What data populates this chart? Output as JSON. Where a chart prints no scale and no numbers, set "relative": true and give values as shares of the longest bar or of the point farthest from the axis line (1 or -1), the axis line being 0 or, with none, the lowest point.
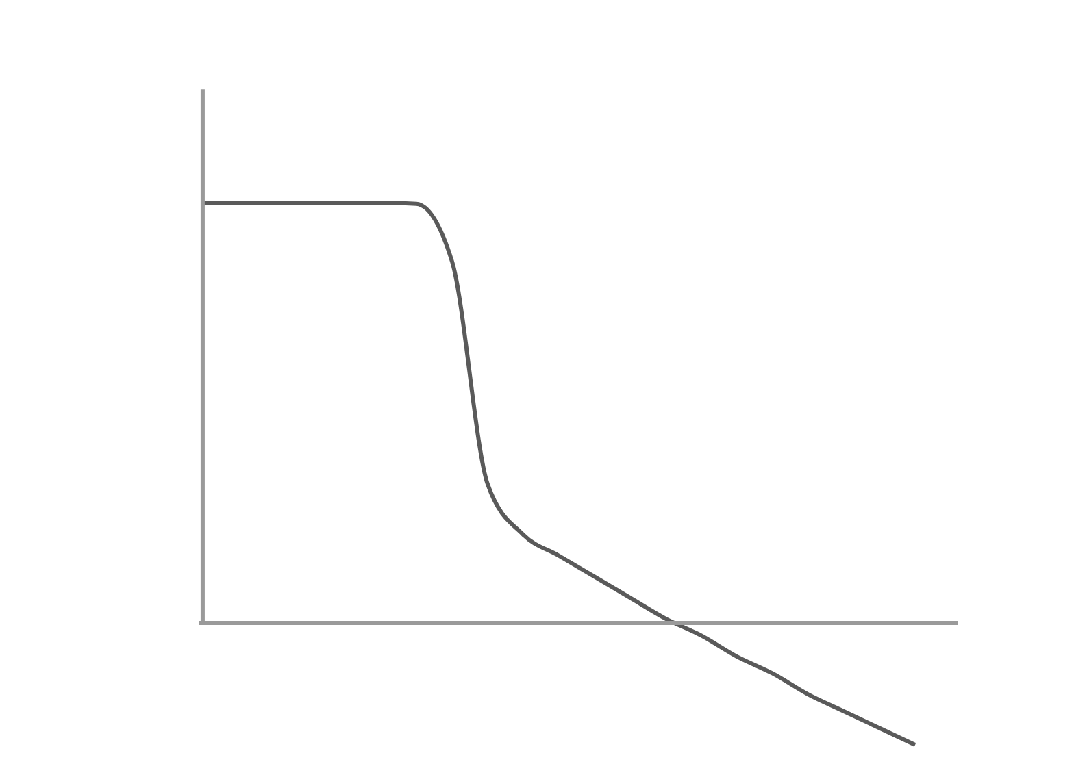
{
  "chart_data": {
    "type": "line",
    "relative": true,
    "color": "#5a5a5a",
    "categories": [
      null,
      null,
      null,
      null,
      null,
      null,
      null,
      null,
      null,
      null,
      null,
      null,
      null,
      null,
      null,
      null,
      null,
      null,
      null,
      null,
      null
    ],
    "values": [
      1.0,
      1.0,
      1.0,
      1.0,
      1.0,
      1.0,
      0.997,
      0.86,
      0.33,
      0.21,
      0.16,
      0.11,
      0.06,
      0.01,
      -0.03,
      -0.08,
      -0.12,
      -0.17,
      -0.21,
      -0.25,
      -0.29
    ]
  }
}
